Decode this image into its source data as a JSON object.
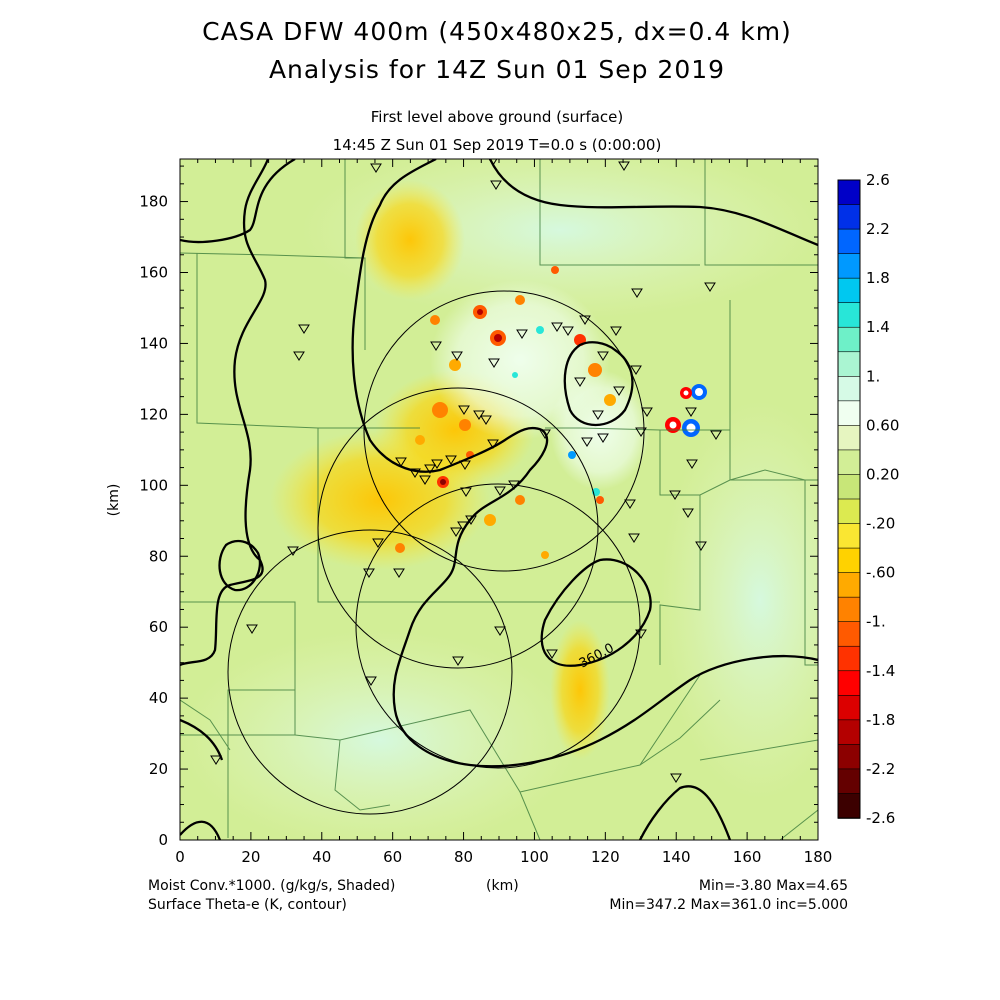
{
  "titles": {
    "line1": "CASA DFW 400m (450x480x25, dx=0.4 km)",
    "line2": "Analysis for 14Z Sun 01 Sep 2019",
    "sub1": "First level above ground (surface)",
    "sub2": "14:45 Z Sun 01 Sep 2019    T=0.0 s (0:00:00)"
  },
  "axes": {
    "x_ticks": [
      "0",
      "20",
      "40",
      "60",
      "80",
      "100",
      "120",
      "140",
      "160",
      "180"
    ],
    "y_ticks": [
      "0",
      "20",
      "40",
      "60",
      "80",
      "100",
      "120",
      "140",
      "160",
      "180"
    ],
    "x_label": "(km)",
    "y_label": "(km)",
    "x_range": [
      0,
      180
    ],
    "y_range": [
      0,
      192
    ]
  },
  "colorbar": {
    "labels": [
      "2.6",
      "2.2",
      "1.8",
      "1.4",
      "1.",
      "0.60",
      "0.20",
      "-.20",
      "-.60",
      "-1.",
      "-1.4",
      "-1.8",
      "-2.2",
      "-2.6"
    ],
    "colors": [
      "#0000c8",
      "#0030e8",
      "#0066ff",
      "#0099ff",
      "#00c8f0",
      "#28e6d8",
      "#6ef0c8",
      "#aaf5d2",
      "#d6fae6",
      "#f0fff0",
      "#e6f5c0",
      "#d2ee96",
      "#c8e678",
      "#dcea50",
      "#fae632",
      "#ffd200",
      "#ffaa00",
      "#ff8200",
      "#ff5a00",
      "#ff3200",
      "#ff0000",
      "#dc0000",
      "#b40000",
      "#8c0000",
      "#640000",
      "#3c0000"
    ]
  },
  "contour_label": "360.0",
  "footer": {
    "left1": "Moist Conv.*1000. (g/kg/s, Shaded)",
    "left_units": "(km)",
    "left2": "Surface Theta-e (K, contour)",
    "right1": "Min=-3.80 Max=4.65",
    "right2": "Min=347.2 Max=361.0 inc=5.000"
  }
}
